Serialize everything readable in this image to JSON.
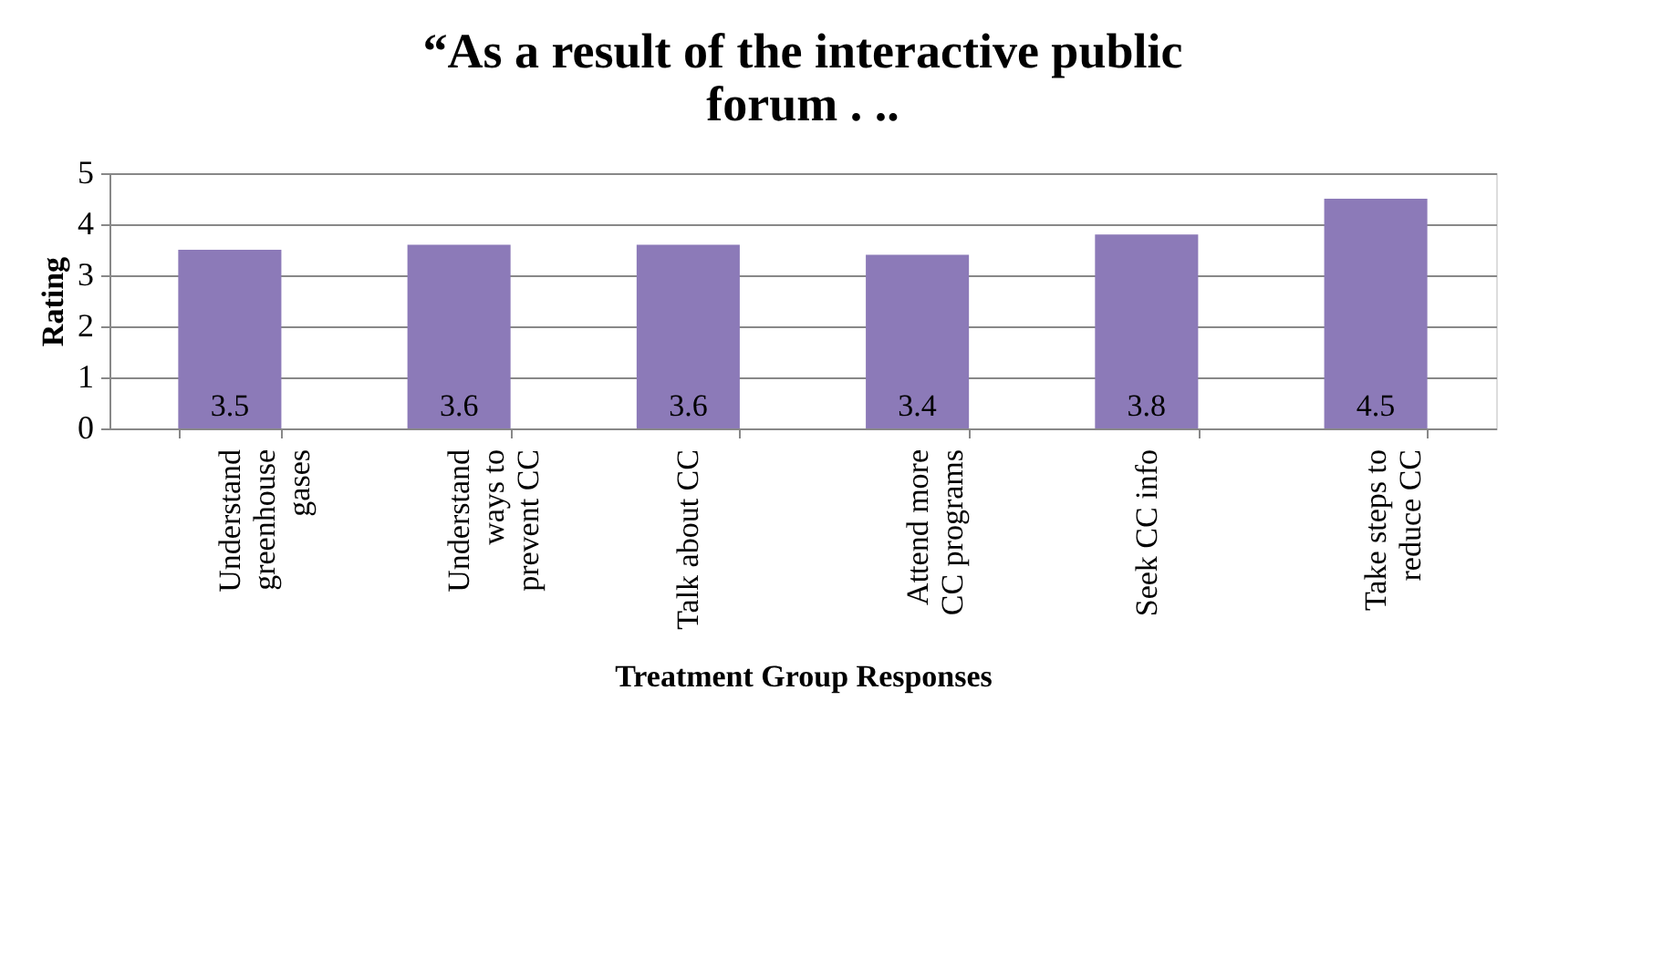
{
  "chart_data": {
    "type": "bar",
    "title": "“As a result of the interactive public forum . ..",
    "xlabel": "Treatment Group Responses",
    "ylabel": "Rating",
    "categories": [
      "Understand greenhouse gases",
      "Understand ways to prevent CC",
      "Talk about CC",
      "Attend more CC programs",
      "Seek CC info",
      "Take steps to reduce CC"
    ],
    "values": [
      3.5,
      3.6,
      3.6,
      3.4,
      3.8,
      4.5
    ],
    "color": "#8c7ab8",
    "ylim": [
      0,
      5
    ],
    "yticks": [
      0,
      1,
      2,
      3,
      4,
      5
    ],
    "grid": "y",
    "data_labels": true
  }
}
